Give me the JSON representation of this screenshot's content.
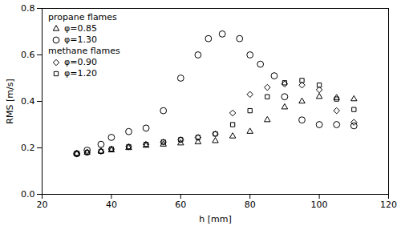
{
  "chart_data": {
    "type": "scatter",
    "title": "",
    "xlabel": "h [mm]",
    "ylabel": "RMS [m/s]",
    "xlim": [
      20,
      120
    ],
    "ylim": [
      0,
      0.8
    ],
    "xticks": [
      20,
      40,
      60,
      80,
      100,
      120
    ],
    "yticks": [
      {
        "value": 0,
        "label": "0.0"
      },
      0.2,
      0.4,
      0.6,
      0.8
    ],
    "grid": false,
    "legend": "upper left",
    "annotations": [
      {
        "text": "propane flames",
        "series": [
          "φ=0.85",
          "φ=1.30"
        ]
      },
      {
        "text": "methane flames",
        "series": [
          "φ=0.90",
          "φ=1.20"
        ]
      }
    ],
    "series": [
      {
        "name": "φ=0.85",
        "color": "#000000",
        "marker": "triangle",
        "x": [
          30,
          33,
          37,
          40,
          45,
          50,
          55,
          60,
          65,
          70,
          75,
          80,
          85,
          90,
          95,
          100,
          105,
          110
        ],
        "values": [
          0.175,
          0.18,
          0.185,
          0.19,
          0.2,
          0.21,
          0.215,
          0.22,
          0.225,
          0.23,
          0.25,
          0.27,
          0.32,
          0.375,
          0.4,
          0.42,
          0.415,
          0.41
        ]
      },
      {
        "name": "φ=1.30",
        "color": "#000000",
        "marker": "circle",
        "x": [
          30,
          33,
          37,
          40,
          45,
          50,
          55,
          60,
          65,
          68,
          72,
          77,
          80,
          83,
          87,
          90,
          95,
          100,
          105,
          110
        ],
        "values": [
          0.175,
          0.19,
          0.215,
          0.245,
          0.27,
          0.285,
          0.36,
          0.5,
          0.6,
          0.67,
          0.69,
          0.67,
          0.6,
          0.56,
          0.51,
          0.42,
          0.32,
          0.3,
          0.3,
          0.295
        ]
      },
      {
        "name": "φ=0.90",
        "color": "#000000",
        "marker": "diamond",
        "x": [
          30,
          33,
          37,
          40,
          45,
          50,
          55,
          60,
          65,
          70,
          75,
          80,
          85,
          90,
          95,
          100,
          105,
          110
        ],
        "values": [
          0.175,
          0.18,
          0.185,
          0.195,
          0.205,
          0.215,
          0.225,
          0.235,
          0.245,
          0.26,
          0.35,
          0.43,
          0.46,
          0.475,
          0.47,
          0.45,
          0.36,
          0.31
        ]
      },
      {
        "name": "φ=1.20",
        "color": "#000000",
        "marker": "square",
        "x": [
          30,
          33,
          37,
          40,
          45,
          50,
          55,
          60,
          65,
          70,
          75,
          80,
          85,
          90,
          95,
          100,
          105,
          110
        ],
        "values": [
          0.175,
          0.18,
          0.185,
          0.195,
          0.205,
          0.215,
          0.225,
          0.235,
          0.245,
          0.26,
          0.3,
          0.36,
          0.42,
          0.48,
          0.49,
          0.47,
          0.41,
          0.365
        ]
      }
    ]
  }
}
